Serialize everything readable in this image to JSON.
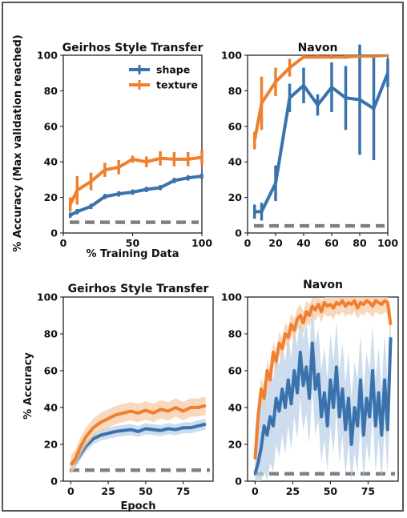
{
  "colors": {
    "shape": "#3a72ad",
    "texture": "#f08030",
    "baseline": "#808080",
    "shape_band": "#b8cfe6",
    "texture_band": "#f7c9a3"
  },
  "shared": {
    "top_ylabel": "% Accuracy (Max validation reached)",
    "bottom_ylabel": "% Accuracy"
  },
  "legend": [
    {
      "name": "shape",
      "color": "#3a72ad"
    },
    {
      "name": "texture",
      "color": "#f08030"
    }
  ],
  "chart_data": [
    {
      "id": "tl",
      "type": "line",
      "title": "Geirhos Style Transfer",
      "xlabel": "% Training Data",
      "xlim": [
        0,
        100
      ],
      "ylim": [
        0,
        100
      ],
      "xticks": [
        0,
        50,
        100
      ],
      "yticks": [
        0,
        20,
        40,
        60,
        80,
        100
      ],
      "legend": "top-center",
      "baseline": 6,
      "series": [
        {
          "name": "shape",
          "x": [
            5,
            10,
            20,
            30,
            40,
            50,
            60,
            70,
            80,
            90,
            100
          ],
          "y": [
            10,
            12,
            15,
            20.5,
            22,
            23,
            24.5,
            25.5,
            29.5,
            31,
            32
          ],
          "err": [
            1.5,
            1.5,
            1.5,
            1.5,
            1.5,
            1.5,
            1.5,
            1.5,
            1.5,
            1.5,
            1.5
          ]
        },
        {
          "name": "texture",
          "x": [
            5,
            10,
            20,
            30,
            40,
            50,
            60,
            70,
            80,
            90,
            100
          ],
          "y": [
            16,
            24,
            29,
            35.5,
            37,
            41.5,
            40,
            42,
            41.5,
            41.5,
            42.5
          ],
          "err": [
            4,
            8,
            5,
            4,
            4,
            2,
            3,
            4,
            4,
            4,
            4
          ]
        }
      ]
    },
    {
      "id": "tr",
      "type": "line",
      "title": "Navon",
      "xlabel": "",
      "xlim": [
        0,
        100
      ],
      "ylim": [
        0,
        100
      ],
      "xticks": [
        0,
        20,
        40,
        60,
        80,
        100
      ],
      "yticks": [
        0,
        20,
        40,
        60,
        80,
        100
      ],
      "baseline": 4,
      "series": [
        {
          "name": "shape",
          "x": [
            5,
            10,
            20,
            30,
            40,
            50,
            60,
            70,
            80,
            90,
            100
          ],
          "y": [
            12,
            12,
            28,
            76,
            83,
            72,
            82,
            76,
            75,
            70,
            90
          ],
          "err": [
            4,
            5,
            10,
            8,
            10,
            6,
            14,
            18,
            31,
            29,
            8
          ]
        },
        {
          "name": "texture",
          "x": [
            5,
            10,
            20,
            30,
            40,
            50,
            60,
            70,
            80,
            90,
            100
          ],
          "y": [
            52,
            73,
            85,
            93,
            99,
            99,
            99,
            99,
            99.5,
            99.5,
            100
          ],
          "err": [
            5,
            15,
            8,
            5,
            1,
            1,
            1,
            1,
            0.5,
            0.5,
            0
          ]
        }
      ]
    },
    {
      "id": "bl",
      "type": "area",
      "title": "Geirhos Style Transfer",
      "xlabel": "Epoch",
      "xlim": [
        -5,
        95
      ],
      "ylim": [
        0,
        100
      ],
      "xticks": [
        0,
        25,
        50,
        75
      ],
      "yticks": [
        0,
        20,
        40,
        60,
        80,
        100
      ],
      "baseline": 6,
      "series": [
        {
          "name": "shape",
          "x": [
            0,
            3,
            6,
            10,
            15,
            20,
            25,
            30,
            35,
            40,
            45,
            50,
            55,
            60,
            65,
            70,
            75,
            80,
            85,
            90
          ],
          "y": [
            9,
            10,
            14,
            19,
            23,
            25,
            26,
            27,
            27.5,
            28,
            27,
            28.5,
            28,
            27.5,
            28.5,
            28,
            29,
            29,
            30,
            31
          ],
          "band": 3
        },
        {
          "name": "texture",
          "x": [
            0,
            3,
            6,
            10,
            15,
            20,
            25,
            30,
            35,
            40,
            45,
            50,
            55,
            60,
            65,
            70,
            75,
            80,
            85,
            90
          ],
          "y": [
            9,
            12,
            18,
            24,
            29,
            32,
            34,
            36,
            37,
            38,
            37,
            38.5,
            37,
            39,
            38,
            40,
            38,
            40,
            40,
            41
          ],
          "band": 5
        }
      ]
    },
    {
      "id": "br",
      "type": "area",
      "title": "Navon",
      "xlabel": "",
      "xlim": [
        -5,
        95
      ],
      "ylim": [
        0,
        100
      ],
      "xticks": [
        0,
        25,
        50,
        75
      ],
      "yticks": [
        0,
        20,
        40,
        60,
        80,
        100
      ],
      "baseline": 4,
      "series": [
        {
          "name": "shape",
          "x": [
            0,
            2,
            4,
            6,
            8,
            10,
            12,
            14,
            16,
            18,
            20,
            22,
            24,
            26,
            28,
            30,
            32,
            34,
            36,
            38,
            40,
            42,
            44,
            46,
            48,
            50,
            52,
            54,
            56,
            58,
            60,
            62,
            64,
            66,
            68,
            70,
            72,
            74,
            76,
            78,
            80,
            82,
            84,
            86,
            88,
            90
          ],
          "y": [
            4,
            10,
            18,
            30,
            25,
            35,
            30,
            45,
            38,
            50,
            40,
            55,
            42,
            60,
            48,
            70,
            52,
            62,
            45,
            75,
            50,
            58,
            35,
            48,
            30,
            55,
            40,
            62,
            35,
            50,
            28,
            45,
            20,
            40,
            30,
            55,
            25,
            45,
            35,
            60,
            30,
            48,
            25,
            55,
            28,
            78
          ],
          "band": 25
        },
        {
          "name": "texture",
          "x": [
            0,
            2,
            4,
            6,
            8,
            10,
            12,
            14,
            16,
            18,
            20,
            22,
            24,
            26,
            28,
            30,
            32,
            34,
            36,
            38,
            40,
            42,
            44,
            46,
            48,
            50,
            52,
            54,
            56,
            58,
            60,
            62,
            64,
            66,
            68,
            70,
            72,
            74,
            76,
            78,
            80,
            82,
            84,
            86,
            88,
            90
          ],
          "y": [
            12,
            35,
            50,
            45,
            60,
            55,
            70,
            65,
            75,
            72,
            80,
            78,
            85,
            82,
            88,
            90,
            86,
            92,
            90,
            95,
            93,
            96,
            92,
            97,
            95,
            96,
            94,
            97,
            96,
            98,
            95,
            97,
            96,
            98,
            94,
            97,
            96,
            98,
            97,
            95,
            98,
            97,
            96,
            98,
            97,
            85
          ],
          "band": 6
        }
      ]
    }
  ]
}
